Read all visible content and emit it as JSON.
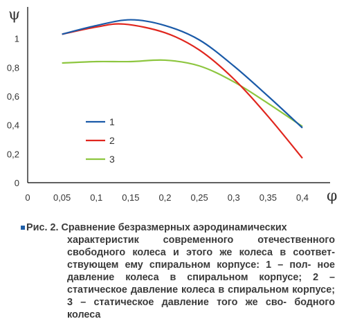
{
  "chart_data": {
    "type": "line",
    "xlabel": "φ",
    "ylabel": "ψ",
    "xlim": [
      0,
      0.4
    ],
    "ylim": [
      0,
      1.2
    ],
    "x_ticks": [
      "0",
      "0,05",
      "0,1",
      "0,15",
      "0,2",
      "0,25",
      "0,3",
      "0,35",
      "0,4"
    ],
    "y_ticks": [
      "0",
      "0,2",
      "0,4",
      "0,6",
      "0,8",
      "1"
    ],
    "grid": false,
    "legend_placement": "center-left",
    "series": [
      {
        "name": "1",
        "color": "#1a5aa8",
        "x": [
          0.05,
          0.1,
          0.15,
          0.2,
          0.25,
          0.3,
          0.35,
          0.4
        ],
        "y": [
          1.03,
          1.09,
          1.13,
          1.09,
          0.99,
          0.81,
          0.6,
          0.38
        ]
      },
      {
        "name": "2",
        "color": "#e0261e",
        "x": [
          0.05,
          0.1,
          0.14,
          0.2,
          0.25,
          0.3,
          0.35,
          0.4
        ],
        "y": [
          1.03,
          1.08,
          1.1,
          1.04,
          0.92,
          0.72,
          0.46,
          0.17
        ]
      },
      {
        "name": "3",
        "color": "#8dc63f",
        "x": [
          0.05,
          0.1,
          0.15,
          0.2,
          0.25,
          0.3,
          0.35,
          0.4
        ],
        "y": [
          0.83,
          0.84,
          0.84,
          0.85,
          0.81,
          0.7,
          0.55,
          0.39
        ]
      }
    ]
  },
  "caption": {
    "figure_label": "Рис. 2.",
    "first_line_text": "Сравнение безразмерных аэродинамических",
    "lines": [
      "характеристик современного отечественного",
      "свободного колеса и этого же колеса в соответ-",
      "ствующем ему спиральном корпусе: 1 – пол-",
      "ное давление колеса в спиральном корпусе;",
      "2 – статическое давление колеса в спиральном",
      "корпусе; 3 – статическое давление того же сво-",
      "бодного колеса"
    ],
    "bullet_color": "#1f5fa8"
  }
}
